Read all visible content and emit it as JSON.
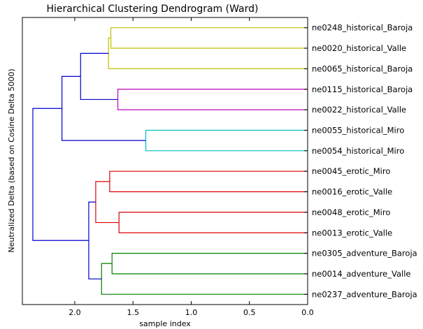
{
  "chart_data": {
    "type": "dendrogram",
    "title": "Hierarchical Clustering Dendrogram (Ward)",
    "xlabel": "sample index",
    "ylabel": "Neutralized Delta (based on Cosine Delta 5000)",
    "orientation": "left",
    "xlim": [
      2.45,
      0.0
    ],
    "xticks": [
      "2.0",
      "1.5",
      "1.0",
      "0.5",
      "0.0"
    ],
    "xtick_values": [
      2.0,
      1.5,
      1.0,
      0.5,
      0.0
    ],
    "leaves": [
      "ne0248_historical_Baroja",
      "ne0020_historical_Valle",
      "ne0065_historical_Baroja",
      "ne0115_historical_Baroja",
      "ne0022_historical_Valle",
      "ne0055_historical_Miro",
      "ne0054_historical_Miro",
      "ne0045_erotic_Miro",
      "ne0016_erotic_Valle",
      "ne0048_erotic_Miro",
      "ne0013_erotic_Valle",
      "ne0305_adventure_Baroja",
      "ne0014_adventure_Valle",
      "ne0237_adventure_Baroja"
    ],
    "merges": [
      {
        "children": [
          "L0",
          "L1"
        ],
        "height": 1.69,
        "color": "#bfbf00"
      },
      {
        "children": [
          "M0",
          "L2"
        ],
        "height": 1.71,
        "color": "#bfbf00"
      },
      {
        "children": [
          "L3",
          "L4"
        ],
        "height": 1.63,
        "color": "#bf00bf"
      },
      {
        "children": [
          "L5",
          "L6"
        ],
        "height": 1.39,
        "color": "#00bfbf"
      },
      {
        "children": [
          "M1",
          "M2"
        ],
        "height": 1.95,
        "color": "#0000cc"
      },
      {
        "children": [
          "M4",
          "M3"
        ],
        "height": 2.11,
        "color": "#0000cc"
      },
      {
        "children": [
          "L7",
          "L8"
        ],
        "height": 1.7,
        "color": "#dd0000"
      },
      {
        "children": [
          "L9",
          "L10"
        ],
        "height": 1.62,
        "color": "#dd0000"
      },
      {
        "children": [
          "M6",
          "M7"
        ],
        "height": 1.82,
        "color": "#dd0000"
      },
      {
        "children": [
          "L11",
          "L12"
        ],
        "height": 1.68,
        "color": "#008000"
      },
      {
        "children": [
          "M9",
          "L13"
        ],
        "height": 1.77,
        "color": "#008000"
      },
      {
        "children": [
          "M8",
          "M10"
        ],
        "height": 1.88,
        "color": "#0000cc"
      },
      {
        "children": [
          "M5",
          "M11"
        ],
        "height": 2.36,
        "color": "#0000cc"
      }
    ],
    "grid": false,
    "legend": "none"
  }
}
